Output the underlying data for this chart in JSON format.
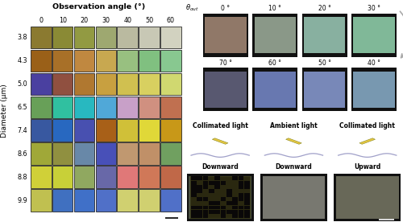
{
  "title": "Observation angle (°)",
  "ylabel": "Diameter (μm)",
  "diameters": [
    "3.8",
    "4.3",
    "5.0",
    "6.5",
    "7.4",
    "8.6",
    "8.8",
    "9.9"
  ],
  "angles": [
    "0",
    "10",
    "20",
    "30",
    "40",
    "50",
    "60"
  ],
  "colors": [
    [
      "#8B7A30",
      "#8A8A35",
      "#929A42",
      "#9EA870",
      "#BABAA0",
      "#C8C8B5",
      "#D2D2C0"
    ],
    [
      "#9A6018",
      "#A87028",
      "#C08840",
      "#C8A850",
      "#98C080",
      "#80C080",
      "#88C890"
    ],
    [
      "#4A40A0",
      "#905040",
      "#B07830",
      "#C8A040",
      "#D0C050",
      "#D8D060",
      "#D0D870"
    ],
    [
      "#68A058",
      "#30C0A0",
      "#28B8C0",
      "#50A8D8",
      "#C8A0C8",
      "#D09080",
      "#C07050"
    ],
    [
      "#3858A0",
      "#2868C0",
      "#4850B0",
      "#A86018",
      "#D0C038",
      "#E0D838",
      "#C89818"
    ],
    [
      "#A0A838",
      "#909040",
      "#6888A8",
      "#4850B8",
      "#C09870",
      "#C09068",
      "#70A060"
    ],
    [
      "#D0D038",
      "#C8D038",
      "#90A860",
      "#6868A8",
      "#E07878",
      "#D07858",
      "#C06848"
    ],
    [
      "#C0C050",
      "#4070C0",
      "#4070C8",
      "#5070C8",
      "#D0D070",
      "#D0D070",
      "#5070C8"
    ]
  ],
  "top_photo_colors": [
    "#907868",
    "#8A9888",
    "#88B0A0",
    "#80B898"
  ],
  "top_angle_labels": [
    "0 °",
    "10 °",
    "20 °",
    "30 °"
  ],
  "bot_photo_colors": [
    "#585870",
    "#6878B0",
    "#7888B8",
    "#7898B0"
  ],
  "bot_angle_labels": [
    "70 °",
    "60 °",
    "50 °",
    "40 °"
  ],
  "bottom_labels": [
    "Collimated light",
    "Ambient light",
    "Collimated light"
  ],
  "bottom_sublabels": [
    "Downward",
    "Downward",
    "Upward"
  ],
  "bottom_photo_colors": [
    "#4A5040",
    "#787870",
    "#686858"
  ],
  "icon_color": "#E8C840",
  "wave_color": "#8888BB",
  "arrow_color": "#AAAAAA"
}
